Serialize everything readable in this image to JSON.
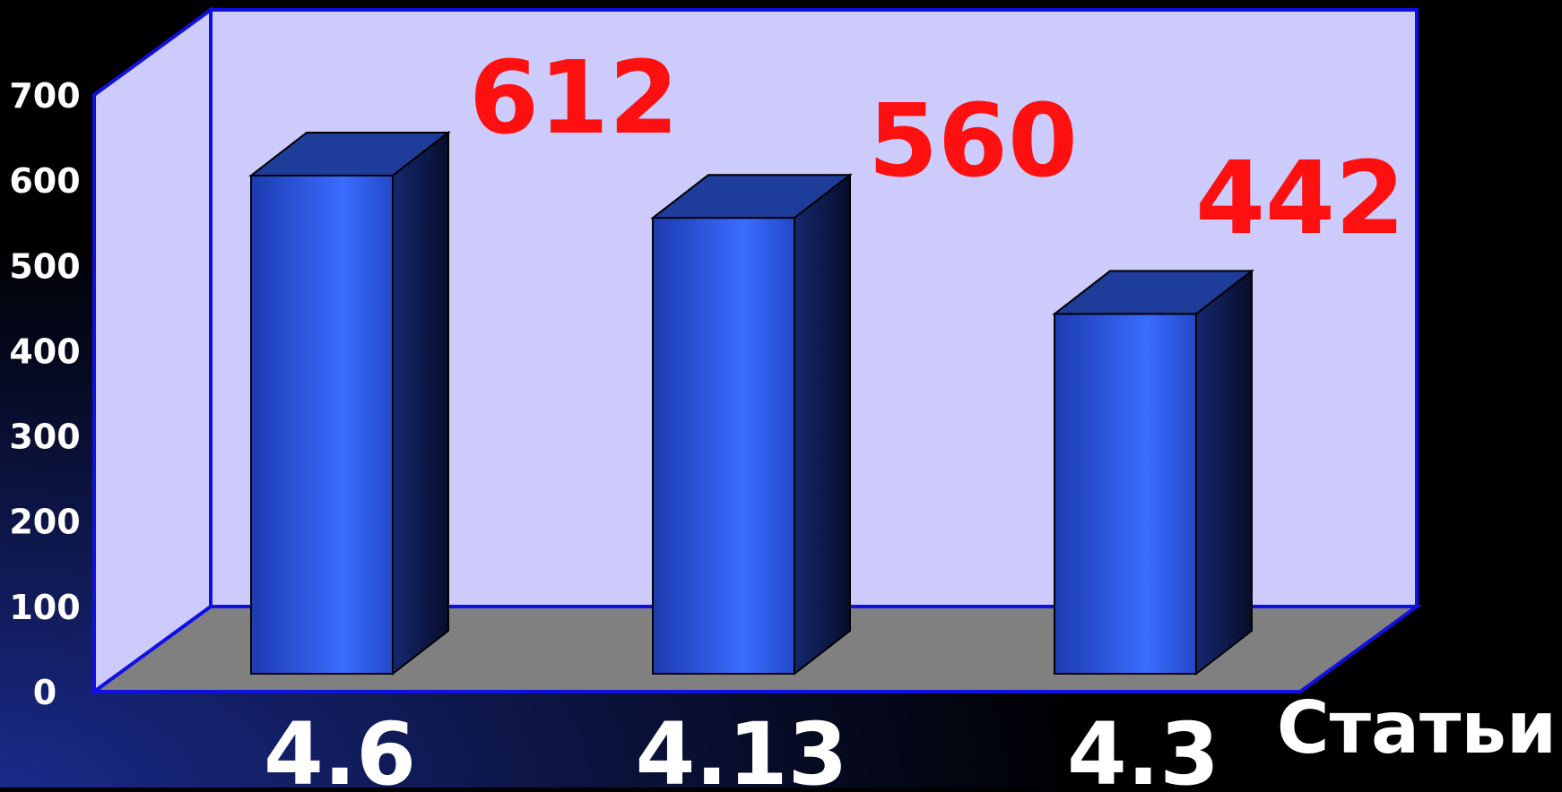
{
  "chart_data": {
    "type": "bar",
    "categories": [
      "4.6",
      "4.13",
      "4.3"
    ],
    "values": [
      612,
      560,
      442
    ],
    "data_labels": [
      "612",
      "560",
      "442"
    ],
    "xlabel": "Статьи",
    "ylabel": "",
    "ylim": [
      0,
      700
    ],
    "yticks": [
      "0",
      "100",
      "200",
      "300",
      "400",
      "500",
      "600",
      "700"
    ],
    "grid": false,
    "legend": "none",
    "style": "3d-column"
  },
  "colors": {
    "background": "#000000",
    "back_wall": "#cccbfb",
    "floor": "#808080",
    "frame": "#1010e0",
    "bar_front": "#2f5ff0",
    "bar_top": "#1e3c9a",
    "bar_side": "#0b1640",
    "data_label": "#ff1010",
    "axis_text": "#ffffff"
  }
}
